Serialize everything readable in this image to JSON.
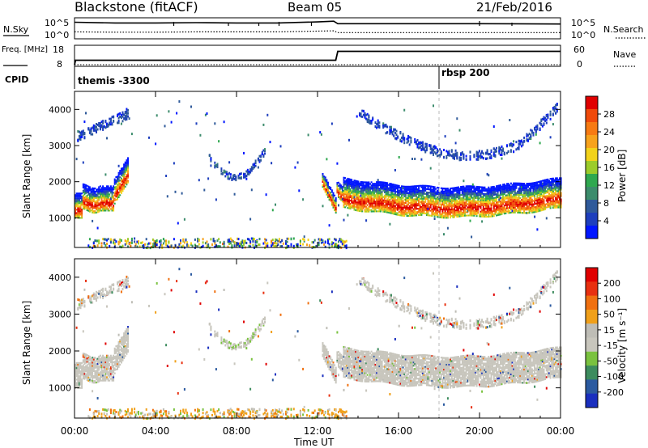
{
  "header": {
    "station": "Blackstone (fitACF)",
    "beam": "Beam 05",
    "date": "21/Feb/2016"
  },
  "colors": {
    "power_scale": [
      "#0016ff",
      "#1e3fbd",
      "#2f5a9a",
      "#3c8c6c",
      "#2fa84f",
      "#9ccc2a",
      "#f2d21a",
      "#f7a21c",
      "#f77a12",
      "#f04a0a",
      "#e00000"
    ],
    "velocity_scale": [
      "#1a2fbf",
      "#2b5aa0",
      "#3d8c5e",
      "#7ac23f",
      "#c8c6bd",
      "#bebdb6",
      "#f0a01a",
      "#f07010",
      "#e83010",
      "#e00000"
    ],
    "ground_scatter": "#c8c6bd"
  },
  "chart_data": [
    {
      "type": "line",
      "name": "noise-panel",
      "left_label": "N.Sky",
      "right_label": "N.Search",
      "left_ticks": [
        "10^5",
        "10^0"
      ],
      "right_ticks": [
        "10^5",
        "10^0"
      ],
      "series": [
        {
          "name": "N.Sky",
          "style": "solid",
          "x": [
            0,
            2,
            4,
            6,
            8,
            10,
            12,
            12.8,
            13,
            16,
            20,
            24
          ],
          "y": [
            4.2,
            4.0,
            4.0,
            4.1,
            4.0,
            4.0,
            4.3,
            4.5,
            3.8,
            3.8,
            3.8,
            3.7
          ]
        },
        {
          "name": "N.Search",
          "style": "dotted",
          "x": [
            0,
            2,
            4,
            6,
            8,
            10,
            12,
            12.8,
            13,
            16,
            20,
            24
          ],
          "y": [
            1.5,
            1.4,
            1.4,
            1.5,
            1.5,
            1.5,
            1.7,
            1.8,
            1.3,
            1.3,
            1.3,
            1.3
          ]
        }
      ]
    },
    {
      "type": "line",
      "name": "frequency-panel",
      "left_label": "Freq. [MHz]",
      "right_label": "Nave",
      "left_ticks": [
        "18",
        "8"
      ],
      "right_ticks": [
        "60",
        "0"
      ],
      "series": [
        {
          "name": "Freq.",
          "style": "solid",
          "x": [
            0,
            0.05,
            12.9,
            13,
            24
          ],
          "y": [
            8,
            10.5,
            10.5,
            15.5,
            15.5
          ]
        },
        {
          "name": "Nave",
          "style": "dotted",
          "x": [
            0,
            24
          ],
          "y": [
            0,
            0
          ]
        }
      ]
    },
    {
      "type": "table",
      "name": "cpid-panel",
      "label": "CPID",
      "segments": [
        {
          "start_hour": 0,
          "text": "themis -3300"
        },
        {
          "start_hour": 18,
          "text": "rbsp 200"
        }
      ]
    },
    {
      "type": "heatmap",
      "name": "power-panel",
      "ylabel": "Slant Range [km]",
      "yticks": [
        1000,
        2000,
        3000,
        4000
      ],
      "ylim": [
        180,
        4500
      ],
      "xlim": [
        0,
        24
      ],
      "colorbar_label": "Power [dB]",
      "colorbar_ticks": [
        "28",
        "24",
        "20",
        "16",
        "12",
        "8",
        "4"
      ],
      "colorbar_range": [
        0,
        30
      ]
    },
    {
      "type": "heatmap",
      "name": "velocity-panel",
      "ylabel": "Slant Range [km]",
      "yticks": [
        1000,
        2000,
        3000,
        4000
      ],
      "ylim": [
        180,
        4500
      ],
      "xlim": [
        0,
        24
      ],
      "colorbar_label": "Velocity [m s⁻¹]",
      "colorbar_ticks": [
        "200",
        "100",
        "50",
        "15",
        "-15",
        "-50",
        "-100",
        "-200"
      ],
      "colorbar_range": [
        -250,
        250
      ]
    },
    {
      "type": "line",
      "name": "time-axis",
      "xlabel": "Time UT",
      "xticks": [
        "00:00",
        "04:00",
        "08:00",
        "12:00",
        "16:00",
        "20:00",
        "00:00"
      ],
      "xlim": [
        0,
        24
      ]
    }
  ]
}
